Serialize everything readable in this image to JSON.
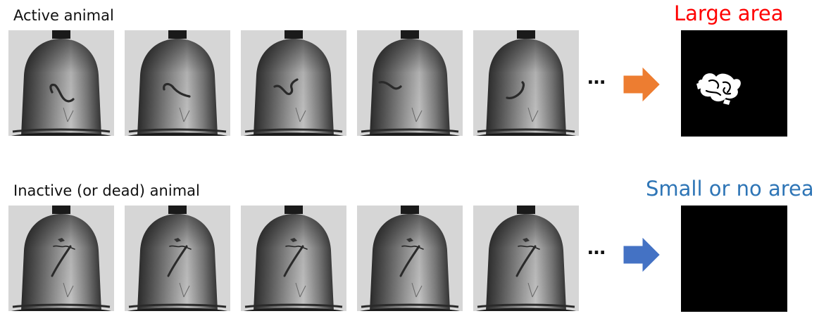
{
  "rows": [
    {
      "id": "active",
      "label": "Active animal",
      "ellipsis": "…",
      "arrow_color": "#ED7D31",
      "result_label": "Large area",
      "result_color": "#FF0000",
      "frames": [
        {
          "worm": "curl"
        },
        {
          "worm": "hook"
        },
        {
          "worm": "wave"
        },
        {
          "worm": "tilde"
        },
        {
          "worm": "arc"
        }
      ]
    },
    {
      "id": "inactive",
      "label": "Inactive (or dead) animal",
      "ellipsis": "…",
      "arrow_color": "#4472C4",
      "result_label": "Small or no area",
      "result_color": "#2E75B6",
      "frames": [
        {
          "worm": "straight"
        },
        {
          "worm": "straight"
        },
        {
          "worm": "straight"
        },
        {
          "worm": "straight"
        },
        {
          "worm": "straight"
        }
      ]
    }
  ]
}
